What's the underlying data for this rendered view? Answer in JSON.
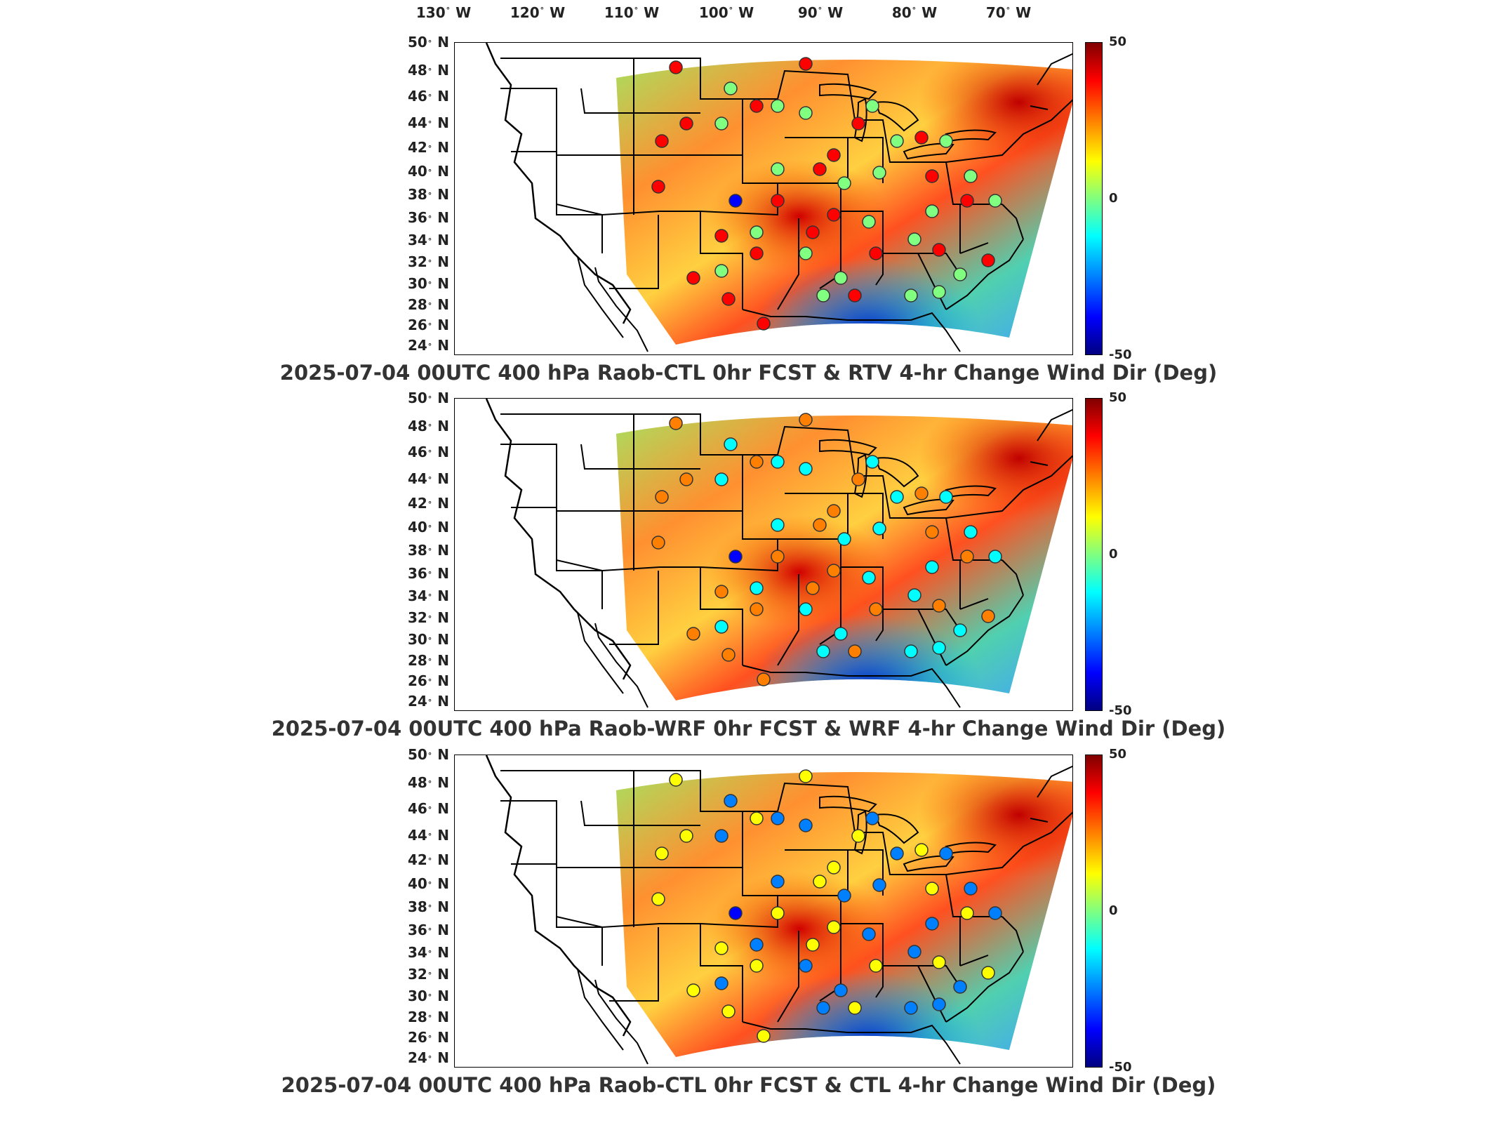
{
  "lon_ticks": [
    {
      "deg": "130",
      "hemi": "W"
    },
    {
      "deg": "120",
      "hemi": "W"
    },
    {
      "deg": "110",
      "hemi": "W"
    },
    {
      "deg": "100",
      "hemi": "W"
    },
    {
      "deg": "90",
      "hemi": "W"
    },
    {
      "deg": "80",
      "hemi": "W"
    },
    {
      "deg": "70",
      "hemi": "W"
    }
  ],
  "lat_ticks": [
    {
      "deg": "50",
      "hemi": "N"
    },
    {
      "deg": "48",
      "hemi": "N"
    },
    {
      "deg": "46",
      "hemi": "N"
    },
    {
      "deg": "44",
      "hemi": "N"
    },
    {
      "deg": "42",
      "hemi": "N"
    },
    {
      "deg": "40",
      "hemi": "N"
    },
    {
      "deg": "38",
      "hemi": "N"
    },
    {
      "deg": "36",
      "hemi": "N"
    },
    {
      "deg": "34",
      "hemi": "N"
    },
    {
      "deg": "32",
      "hemi": "N"
    },
    {
      "deg": "30",
      "hemi": "N"
    },
    {
      "deg": "28",
      "hemi": "N"
    },
    {
      "deg": "26",
      "hemi": "N"
    },
    {
      "deg": "24",
      "hemi": "N"
    }
  ],
  "colorbar": {
    "max": "50",
    "mid": "0",
    "min": "-50",
    "colors": [
      "#800000",
      "#ff0000",
      "#ff8000",
      "#ffff00",
      "#80ff80",
      "#00ffff",
      "#0080ff",
      "#0000ff",
      "#000080"
    ]
  },
  "panels": [
    {
      "title": "2025-07-04 00UTC 400 hPa Raob-CTL 0hr FCST & RTV 4-hr Change Wind Dir (Deg)"
    },
    {
      "title": "2025-07-04 00UTC 400 hPa Raob-WRF 0hr FCST & WRF 4-hr Change Wind Dir (Deg)"
    },
    {
      "title": "2025-07-04 00UTC 400 hPa Raob-CTL 0hr FCST & CTL 4-hr Change Wind Dir (Deg)"
    }
  ]
}
